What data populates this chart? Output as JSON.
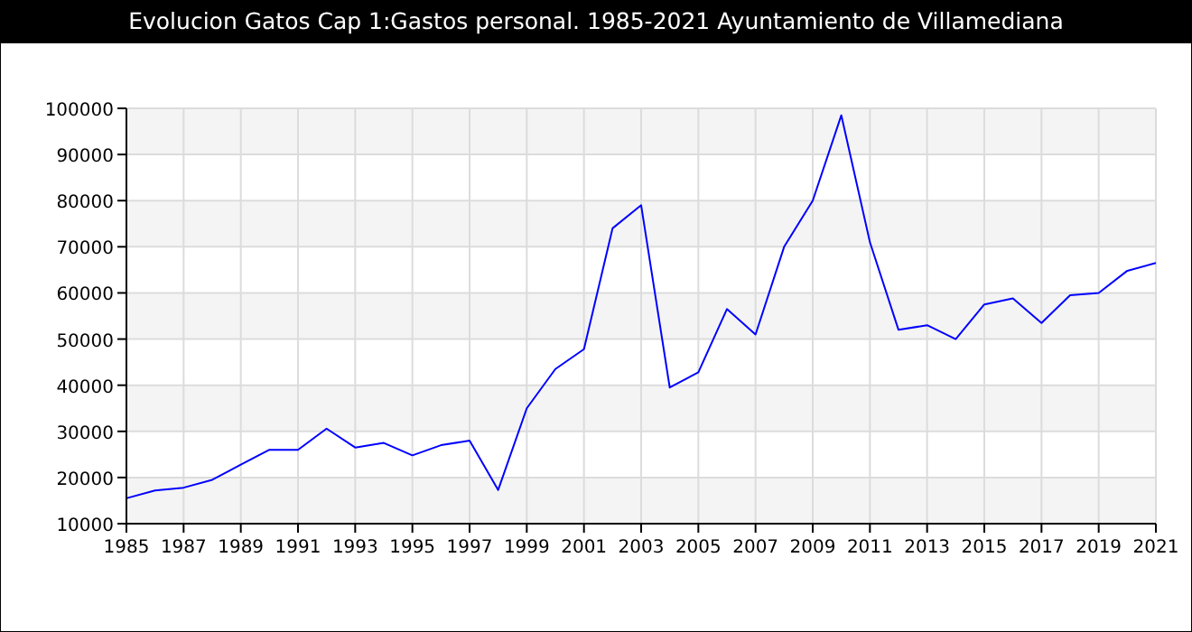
{
  "chart_data": {
    "type": "line",
    "title": "Evolucion Gatos Cap 1:Gastos personal. 1985-2021 Ayuntamiento de Villamediana",
    "x": [
      1985,
      1986,
      1987,
      1988,
      1989,
      1990,
      1991,
      1992,
      1993,
      1994,
      1995,
      1996,
      1997,
      1998,
      1999,
      2000,
      2001,
      2002,
      2003,
      2004,
      2005,
      2006,
      2007,
      2008,
      2009,
      2010,
      2011,
      2012,
      2013,
      2014,
      2015,
      2016,
      2017,
      2018,
      2019,
      2020,
      2021
    ],
    "series": [
      {
        "color": "#0000ff",
        "values": [
          15500,
          17200,
          17800,
          19500,
          22800,
          26000,
          26000,
          30600,
          26500,
          27500,
          24800,
          27000,
          28000,
          17300,
          35000,
          43500,
          47800,
          74000,
          79000,
          39500,
          42800,
          56500,
          51000,
          70000,
          80000,
          98500,
          71000,
          52000,
          53000,
          50000,
          57500,
          58800,
          53500,
          59500,
          60000,
          64800,
          66500
        ]
      }
    ],
    "xlim": [
      1985,
      2021
    ],
    "xticks": [
      1985,
      1987,
      1989,
      1991,
      1993,
      1995,
      1997,
      1999,
      2001,
      2003,
      2005,
      2007,
      2009,
      2011,
      2013,
      2015,
      2017,
      2019,
      2021
    ],
    "ylim": [
      10000,
      100000
    ],
    "yticks": [
      10000,
      20000,
      30000,
      40000,
      50000,
      60000,
      70000,
      80000,
      90000,
      100000
    ],
    "grid": true,
    "marker": "none",
    "line_style": "solid"
  }
}
